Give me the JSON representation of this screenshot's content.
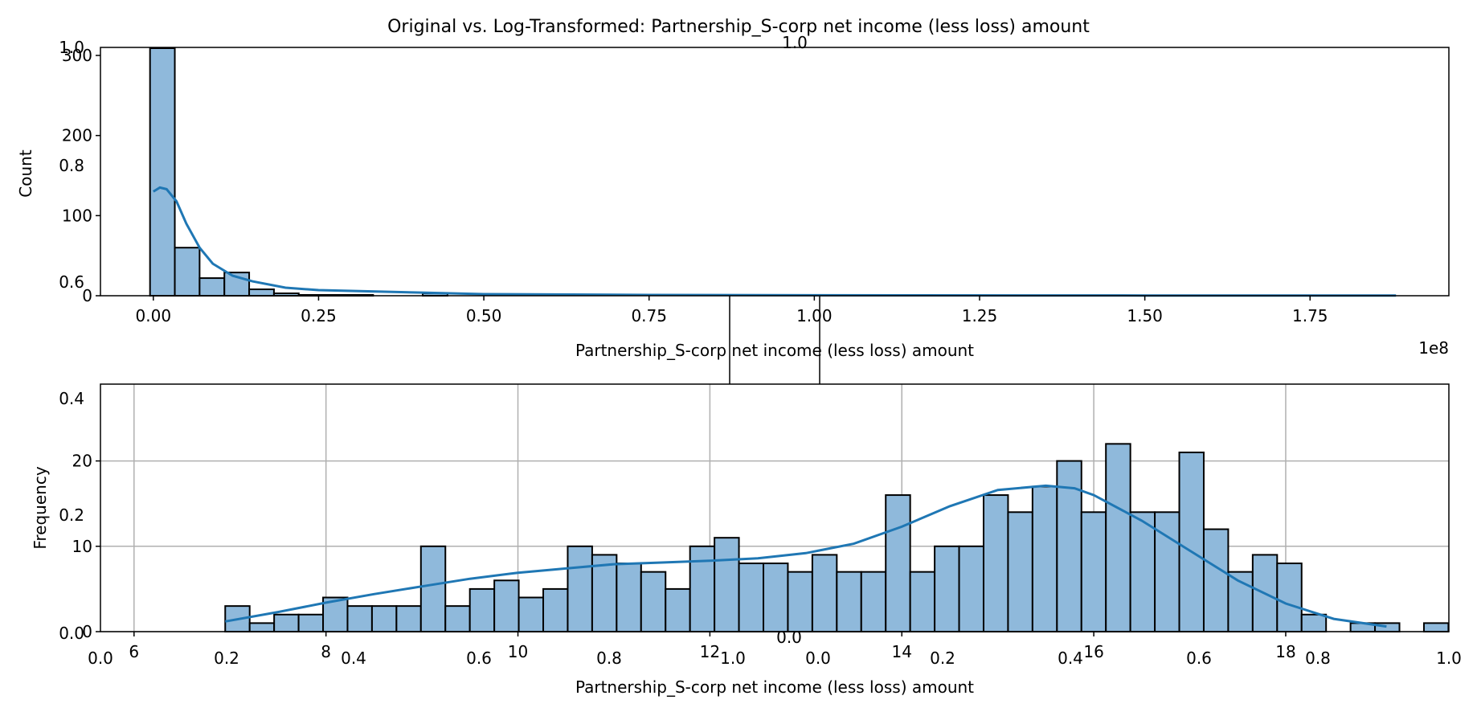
{
  "figure": {
    "title": "Original vs. Log-Transformed: Partnership_S-corp net income (less loss) amount"
  },
  "chart_data": [
    {
      "type": "histogram",
      "name": "original",
      "xlabel": "Partnership_S-corp net income (less loss) amount",
      "ylabel": "Count",
      "xlim": [
        -0.08,
        1.96
      ],
      "ylim": [
        0,
        310
      ],
      "x_offset_label": "1e8",
      "xticks": [
        0.0,
        0.25,
        0.5,
        0.75,
        1.0,
        1.25,
        1.5,
        1.75
      ],
      "xtick_labels": [
        "0.00",
        "0.25",
        "0.50",
        "0.75",
        "1.00",
        "1.25",
        "1.50",
        "1.75"
      ],
      "yticks": [
        0,
        100,
        200,
        300
      ],
      "ytick_labels": [
        "0",
        "100",
        "200",
        "300"
      ],
      "bin_start": -0.005,
      "bin_width": 0.0375,
      "counts": [
        309,
        60,
        22,
        29,
        8,
        3,
        1,
        1,
        1,
        0,
        0,
        3,
        0,
        0,
        0,
        0,
        0,
        0,
        0,
        0,
        0,
        0,
        0,
        0,
        0,
        0,
        0,
        0,
        0,
        0,
        0,
        0,
        0,
        0,
        0,
        0,
        0,
        0,
        0,
        0,
        0,
        0,
        0,
        0,
        0,
        0,
        0,
        0,
        0,
        0
      ],
      "kde": {
        "x": [
          0.0,
          0.01,
          0.02,
          0.035,
          0.05,
          0.07,
          0.09,
          0.12,
          0.15,
          0.2,
          0.25,
          0.3,
          0.4,
          0.5,
          0.75,
          1.0,
          1.5,
          1.88
        ],
        "y": [
          130,
          135,
          133,
          118,
          90,
          60,
          40,
          25,
          18,
          10,
          7,
          6,
          4,
          2,
          1,
          0.6,
          0.3,
          0.2
        ]
      },
      "bar_color": "#8fb9db",
      "kde_color": "#1f77b4"
    },
    {
      "type": "histogram",
      "name": "log-transformed",
      "xlabel": "Partnership_S-corp net income (less loss) amount",
      "ylabel": "Frequency",
      "xlim": [
        5.65,
        19.7
      ],
      "ylim": [
        0,
        29
      ],
      "grid": true,
      "xticks": [
        6,
        8,
        10,
        12,
        14,
        16,
        18
      ],
      "xtick_labels": [
        "6",
        "8",
        "10",
        "12",
        "14",
        "16",
        "18"
      ],
      "yticks": [
        0,
        10,
        20
      ],
      "ytick_labels": [
        "0",
        "10",
        "20"
      ],
      "bin_start": 6.95,
      "bin_width": 0.2549,
      "counts": [
        3,
        1,
        2,
        2,
        4,
        3,
        3,
        3,
        10,
        3,
        5,
        6,
        4,
        5,
        10,
        9,
        8,
        7,
        5,
        10,
        11,
        8,
        8,
        7,
        9,
        7,
        7,
        16,
        7,
        10,
        10,
        16,
        14,
        17,
        20,
        14,
        22,
        14,
        14,
        21,
        12,
        7,
        9,
        8,
        2,
        0,
        1,
        1,
        0,
        1
      ],
      "kde": {
        "x": [
          6.95,
          7.5,
          8.0,
          8.5,
          9.0,
          9.5,
          10.0,
          10.5,
          11.0,
          11.5,
          12.0,
          12.5,
          13.0,
          13.5,
          14.0,
          14.5,
          15.0,
          15.5,
          15.8,
          16.0,
          16.5,
          17.0,
          17.5,
          18.0,
          18.5,
          19.05
        ],
        "y": [
          1.2,
          2.3,
          3.4,
          4.4,
          5.3,
          6.2,
          6.9,
          7.4,
          7.9,
          8.1,
          8.3,
          8.6,
          9.2,
          10.3,
          12.3,
          14.7,
          16.6,
          17.1,
          16.8,
          16.0,
          13.0,
          9.5,
          6.0,
          3.3,
          1.5,
          0.6
        ]
      },
      "bar_color": "#8fb9db",
      "kde_color": "#1f77b4"
    }
  ],
  "overlay": {
    "outer_ylabels": [
      "1.0",
      "0.8",
      "0.6"
    ],
    "outer_ylabels_low": [
      "0.0",
      "0.2",
      "0.4"
    ],
    "outer_xlabels": [
      "0.0",
      "0.2",
      "0.4",
      "0.6",
      "0.8",
      "1.0"
    ],
    "center_xlabels": [
      "0.0",
      "1.0",
      "0.0"
    ],
    "top_label": "1.0",
    "y_zero_low": "0.0"
  }
}
